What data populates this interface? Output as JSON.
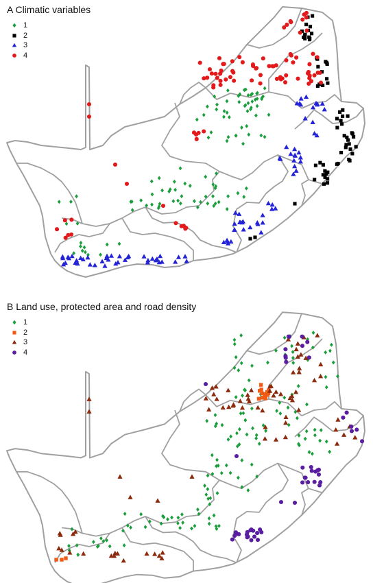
{
  "panels": [
    {
      "title": "A Climatic variables",
      "legend": [
        {
          "label": "1",
          "symbol": "diamond",
          "color": "#1b9e3c"
        },
        {
          "label": "2",
          "symbol": "square",
          "color": "#000000"
        },
        {
          "label": "3",
          "symbol": "triangle",
          "color": "#2424d6"
        },
        {
          "label": "4",
          "symbol": "circle",
          "color": "#e31a1c"
        }
      ]
    },
    {
      "title": "B  Land use, protected area and road density",
      "legend": [
        {
          "label": "1",
          "symbol": "diamond",
          "color": "#1b9e3c"
        },
        {
          "label": "2",
          "symbol": "square",
          "color": "#f05a14"
        },
        {
          "label": "3",
          "symbol": "triangle",
          "color": "#8b2a0c"
        },
        {
          "label": "4",
          "symbol": "circle",
          "color": "#5a1fa0"
        }
      ]
    }
  ],
  "colors": {
    "boundary": "#a0a0a0",
    "land": "#ffffff"
  }
}
